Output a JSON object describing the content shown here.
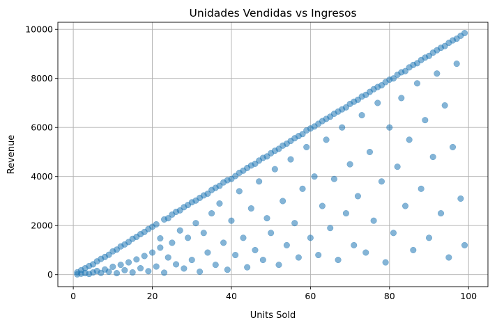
{
  "chart_data": {
    "type": "scatter",
    "title": "Unidades Vendidas vs Ingresos",
    "xlabel": "Units Sold",
    "ylabel": "Revenue",
    "xlim": [
      -3.9,
      104.9
    ],
    "ylim": [
      -490,
      10290
    ],
    "xticks": [
      0,
      20,
      40,
      60,
      80,
      100
    ],
    "xtick_labels": [
      "0",
      "20",
      "40",
      "60",
      "80",
      "100"
    ],
    "yticks": [
      0,
      2000,
      4000,
      6000,
      8000,
      10000
    ],
    "ytick_labels": [
      "0",
      "2000",
      "4000",
      "6000",
      "8000",
      "10000"
    ],
    "grid": true,
    "legend": false,
    "marker_color": "#1f77b4",
    "marker_alpha": 0.55,
    "series": [
      {
        "points_xy": [
          [
            1,
            12
          ],
          [
            1,
            95
          ],
          [
            2,
            40
          ],
          [
            2,
            180
          ],
          [
            3,
            60
          ],
          [
            3,
            260
          ],
          [
            4,
            30
          ],
          [
            4,
            350
          ],
          [
            5,
            90
          ],
          [
            5,
            420
          ],
          [
            6,
            150
          ],
          [
            6,
            540
          ],
          [
            7,
            70
          ],
          [
            7,
            640
          ],
          [
            8,
            210
          ],
          [
            8,
            720
          ],
          [
            9,
            120
          ],
          [
            9,
            810
          ],
          [
            10,
            320
          ],
          [
            10,
            950
          ],
          [
            11,
            60
          ],
          [
            11,
            1020
          ],
          [
            12,
            400
          ],
          [
            12,
            1150
          ],
          [
            13,
            180
          ],
          [
            13,
            1230
          ],
          [
            14,
            500
          ],
          [
            14,
            1330
          ],
          [
            15,
            90
          ],
          [
            15,
            1460
          ],
          [
            16,
            620
          ],
          [
            16,
            1540
          ],
          [
            17,
            260
          ],
          [
            17,
            1650
          ],
          [
            18,
            760
          ],
          [
            18,
            1740
          ],
          [
            19,
            140
          ],
          [
            19,
            1860
          ],
          [
            20,
            900
          ],
          [
            20,
            1950
          ],
          [
            21,
            330
          ],
          [
            21,
            2050
          ],
          [
            22,
            1100
          ],
          [
            22,
            1480
          ],
          [
            23,
            80
          ],
          [
            23,
            2250
          ],
          [
            24,
            700
          ],
          [
            24,
            2300
          ],
          [
            25,
            1300
          ],
          [
            25,
            2450
          ],
          [
            26,
            420
          ],
          [
            26,
            2560
          ],
          [
            27,
            1800
          ],
          [
            27,
            2620
          ],
          [
            28,
            250
          ],
          [
            28,
            2750
          ],
          [
            29,
            1500
          ],
          [
            29,
            2840
          ],
          [
            30,
            600
          ],
          [
            30,
            2950
          ],
          [
            31,
            2100
          ],
          [
            31,
            3020
          ],
          [
            32,
            120
          ],
          [
            32,
            3130
          ],
          [
            33,
            1700
          ],
          [
            33,
            3230
          ],
          [
            34,
            900
          ],
          [
            34,
            3300
          ],
          [
            35,
            2500
          ],
          [
            35,
            3450
          ],
          [
            36,
            400
          ],
          [
            36,
            3540
          ],
          [
            37,
            2900
          ],
          [
            37,
            3620
          ],
          [
            38,
            1300
          ],
          [
            38,
            3760
          ],
          [
            39,
            200
          ],
          [
            39,
            3850
          ],
          [
            40,
            2200
          ],
          [
            40,
            3900
          ],
          [
            41,
            800
          ],
          [
            41,
            4020
          ],
          [
            42,
            3400
          ],
          [
            42,
            4150
          ],
          [
            43,
            1500
          ],
          [
            43,
            4240
          ],
          [
            44,
            300
          ],
          [
            44,
            4350
          ],
          [
            45,
            2700
          ],
          [
            45,
            4450
          ],
          [
            46,
            1000
          ],
          [
            46,
            4520
          ],
          [
            47,
            3800
          ],
          [
            47,
            4650
          ],
          [
            48,
            600
          ],
          [
            48,
            4760
          ],
          [
            49,
            2300
          ],
          [
            49,
            4820
          ],
          [
            50,
            1700
          ],
          [
            50,
            4950
          ],
          [
            51,
            4300
          ],
          [
            51,
            5050
          ],
          [
            52,
            400
          ],
          [
            52,
            5130
          ],
          [
            53,
            3000
          ],
          [
            53,
            5260
          ],
          [
            54,
            1200
          ],
          [
            54,
            5340
          ],
          [
            55,
            4700
          ],
          [
            55,
            5450
          ],
          [
            56,
            2100
          ],
          [
            56,
            5560
          ],
          [
            57,
            700
          ],
          [
            57,
            5650
          ],
          [
            58,
            3500
          ],
          [
            58,
            5730
          ],
          [
            59,
            5200
          ],
          [
            59,
            5880
          ],
          [
            60,
            1500
          ],
          [
            60,
            5960
          ],
          [
            61,
            4000
          ],
          [
            61,
            6040
          ],
          [
            62,
            800
          ],
          [
            62,
            6150
          ],
          [
            63,
            2800
          ],
          [
            63,
            6260
          ],
          [
            64,
            5500
          ],
          [
            64,
            6350
          ],
          [
            65,
            1900
          ],
          [
            65,
            6440
          ],
          [
            66,
            3900
          ],
          [
            66,
            6560
          ],
          [
            67,
            600
          ],
          [
            67,
            6650
          ],
          [
            68,
            6000
          ],
          [
            68,
            6740
          ],
          [
            69,
            2500
          ],
          [
            69,
            6820
          ],
          [
            70,
            4500
          ],
          [
            70,
            6960
          ],
          [
            71,
            1200
          ],
          [
            71,
            7050
          ],
          [
            72,
            3200
          ],
          [
            72,
            7130
          ],
          [
            73,
            6500
          ],
          [
            73,
            7260
          ],
          [
            74,
            900
          ],
          [
            74,
            7330
          ],
          [
            75,
            5000
          ],
          [
            75,
            7450
          ],
          [
            76,
            2200
          ],
          [
            76,
            7560
          ],
          [
            77,
            7000
          ],
          [
            77,
            7650
          ],
          [
            78,
            3800
          ],
          [
            78,
            7720
          ],
          [
            79,
            500
          ],
          [
            79,
            7850
          ],
          [
            80,
            6000
          ],
          [
            80,
            7950
          ],
          [
            81,
            1700
          ],
          [
            81,
            8000
          ],
          [
            82,
            4400
          ],
          [
            82,
            8150
          ],
          [
            83,
            7200
          ],
          [
            83,
            8250
          ],
          [
            84,
            2800
          ],
          [
            84,
            8300
          ],
          [
            85,
            5500
          ],
          [
            85,
            8450
          ],
          [
            86,
            1000
          ],
          [
            86,
            8550
          ],
          [
            87,
            7800
          ],
          [
            87,
            8620
          ],
          [
            88,
            3500
          ],
          [
            88,
            8750
          ],
          [
            89,
            6300
          ],
          [
            89,
            8850
          ],
          [
            90,
            1500
          ],
          [
            90,
            8920
          ],
          [
            91,
            4800
          ],
          [
            91,
            9050
          ],
          [
            92,
            8200
          ],
          [
            92,
            9150
          ],
          [
            93,
            2500
          ],
          [
            93,
            9250
          ],
          [
            94,
            6900
          ],
          [
            94,
            9320
          ],
          [
            95,
            700
          ],
          [
            95,
            9450
          ],
          [
            96,
            5200
          ],
          [
            96,
            9550
          ],
          [
            97,
            8600
          ],
          [
            97,
            9620
          ],
          [
            98,
            3100
          ],
          [
            98,
            9740
          ],
          [
            99,
            1200
          ],
          [
            99,
            9850
          ]
        ]
      }
    ]
  }
}
